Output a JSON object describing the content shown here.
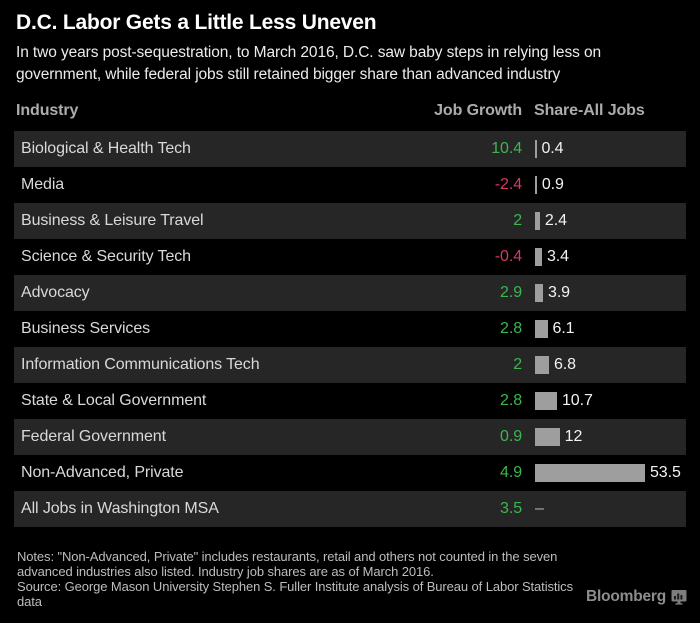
{
  "header": {
    "title": "D.C. Labor Gets a Little Less Uneven",
    "subtitle": "In two years post-sequestration, to March 2016, D.C. saw baby steps in relying less on government, while federal jobs still retained bigger share than advanced industry"
  },
  "columns": {
    "industry": "Industry",
    "job_growth": "Job Growth",
    "share": "Share-All Jobs"
  },
  "rows": [
    {
      "industry": "Biological & Health Tech",
      "growth": "10.4",
      "negative": false,
      "share": 0.4,
      "share_label": "0.4"
    },
    {
      "industry": "Media",
      "growth": "-2.4",
      "negative": true,
      "share": 0.9,
      "share_label": "0.9"
    },
    {
      "industry": "Business & Leisure Travel",
      "growth": "2",
      "negative": false,
      "share": 2.4,
      "share_label": "2.4"
    },
    {
      "industry": "Science & Security Tech",
      "growth": "-0.4",
      "negative": true,
      "share": 3.4,
      "share_label": "3.4"
    },
    {
      "industry": "Advocacy",
      "growth": "2.9",
      "negative": false,
      "share": 3.9,
      "share_label": "3.9"
    },
    {
      "industry": "Business Services",
      "growth": "2.8",
      "negative": false,
      "share": 6.1,
      "share_label": "6.1"
    },
    {
      "industry": "Information Communications Tech",
      "growth": "2",
      "negative": false,
      "share": 6.8,
      "share_label": "6.8"
    },
    {
      "industry": "State & Local Government",
      "growth": "2.8",
      "negative": false,
      "share": 10.7,
      "share_label": "10.7"
    },
    {
      "industry": "Federal Government",
      "growth": "0.9",
      "negative": false,
      "share": 12,
      "share_label": "12"
    },
    {
      "industry": "Non-Advanced, Private",
      "growth": "4.9",
      "negative": false,
      "share": 53.5,
      "share_label": "53.5"
    },
    {
      "industry": "All Jobs in Washington MSA",
      "growth": "3.5",
      "negative": false,
      "share": null,
      "share_label": "–"
    }
  ],
  "chart_data": {
    "type": "bar",
    "title": "D.C. Labor Gets a Little Less Uneven",
    "subtitle": "In two years post-sequestration, to March 2016, D.C. saw baby steps in relying less on government, while federal jobs still retained bigger share than advanced industry",
    "orientation": "horizontal",
    "categories": [
      "Biological & Health Tech",
      "Media",
      "Business & Leisure Travel",
      "Science & Security Tech",
      "Advocacy",
      "Business Services",
      "Information Communications Tech",
      "State & Local Government",
      "Federal Government",
      "Non-Advanced, Private",
      "All Jobs in Washington MSA"
    ],
    "series": [
      {
        "name": "Job Growth",
        "values": [
          10.4,
          -2.4,
          2,
          -0.4,
          2.9,
          2.8,
          2,
          2.8,
          0.9,
          4.9,
          3.5
        ]
      },
      {
        "name": "Share-All Jobs",
        "values": [
          0.4,
          0.9,
          2.4,
          3.4,
          3.9,
          6.1,
          6.8,
          10.7,
          12,
          53.5,
          null
        ]
      }
    ],
    "bar_series_shown_as_bars": "Share-All Jobs",
    "xlim": [
      0,
      53.5
    ],
    "grid": false,
    "legend_position": "none"
  },
  "footer": {
    "notes": "Notes: \"Non-Advanced, Private\" includes restaurants, retail and others not counted in the seven advanced industries also listed. Industry job shares are as of March 2016.",
    "source": "Source: George Mason University Stephen S. Fuller Institute analysis of Bureau of Labor Statistics data",
    "brand": "Bloomberg"
  },
  "icons": {
    "brand_icon": "terminal-chart-icon"
  },
  "colors": {
    "background": "#000000",
    "row_alt": "#262626",
    "title": "#ffffff",
    "subtitle": "#ececec",
    "column_header": "#acacac",
    "row_label": "#d9d9d9",
    "positive": "#3db651",
    "negative": "#d13c5f",
    "bar": "#9e9e9e",
    "share_value": "#f2f2f2",
    "notes": "#bdbdbd",
    "brand": "#8d8d8d"
  }
}
